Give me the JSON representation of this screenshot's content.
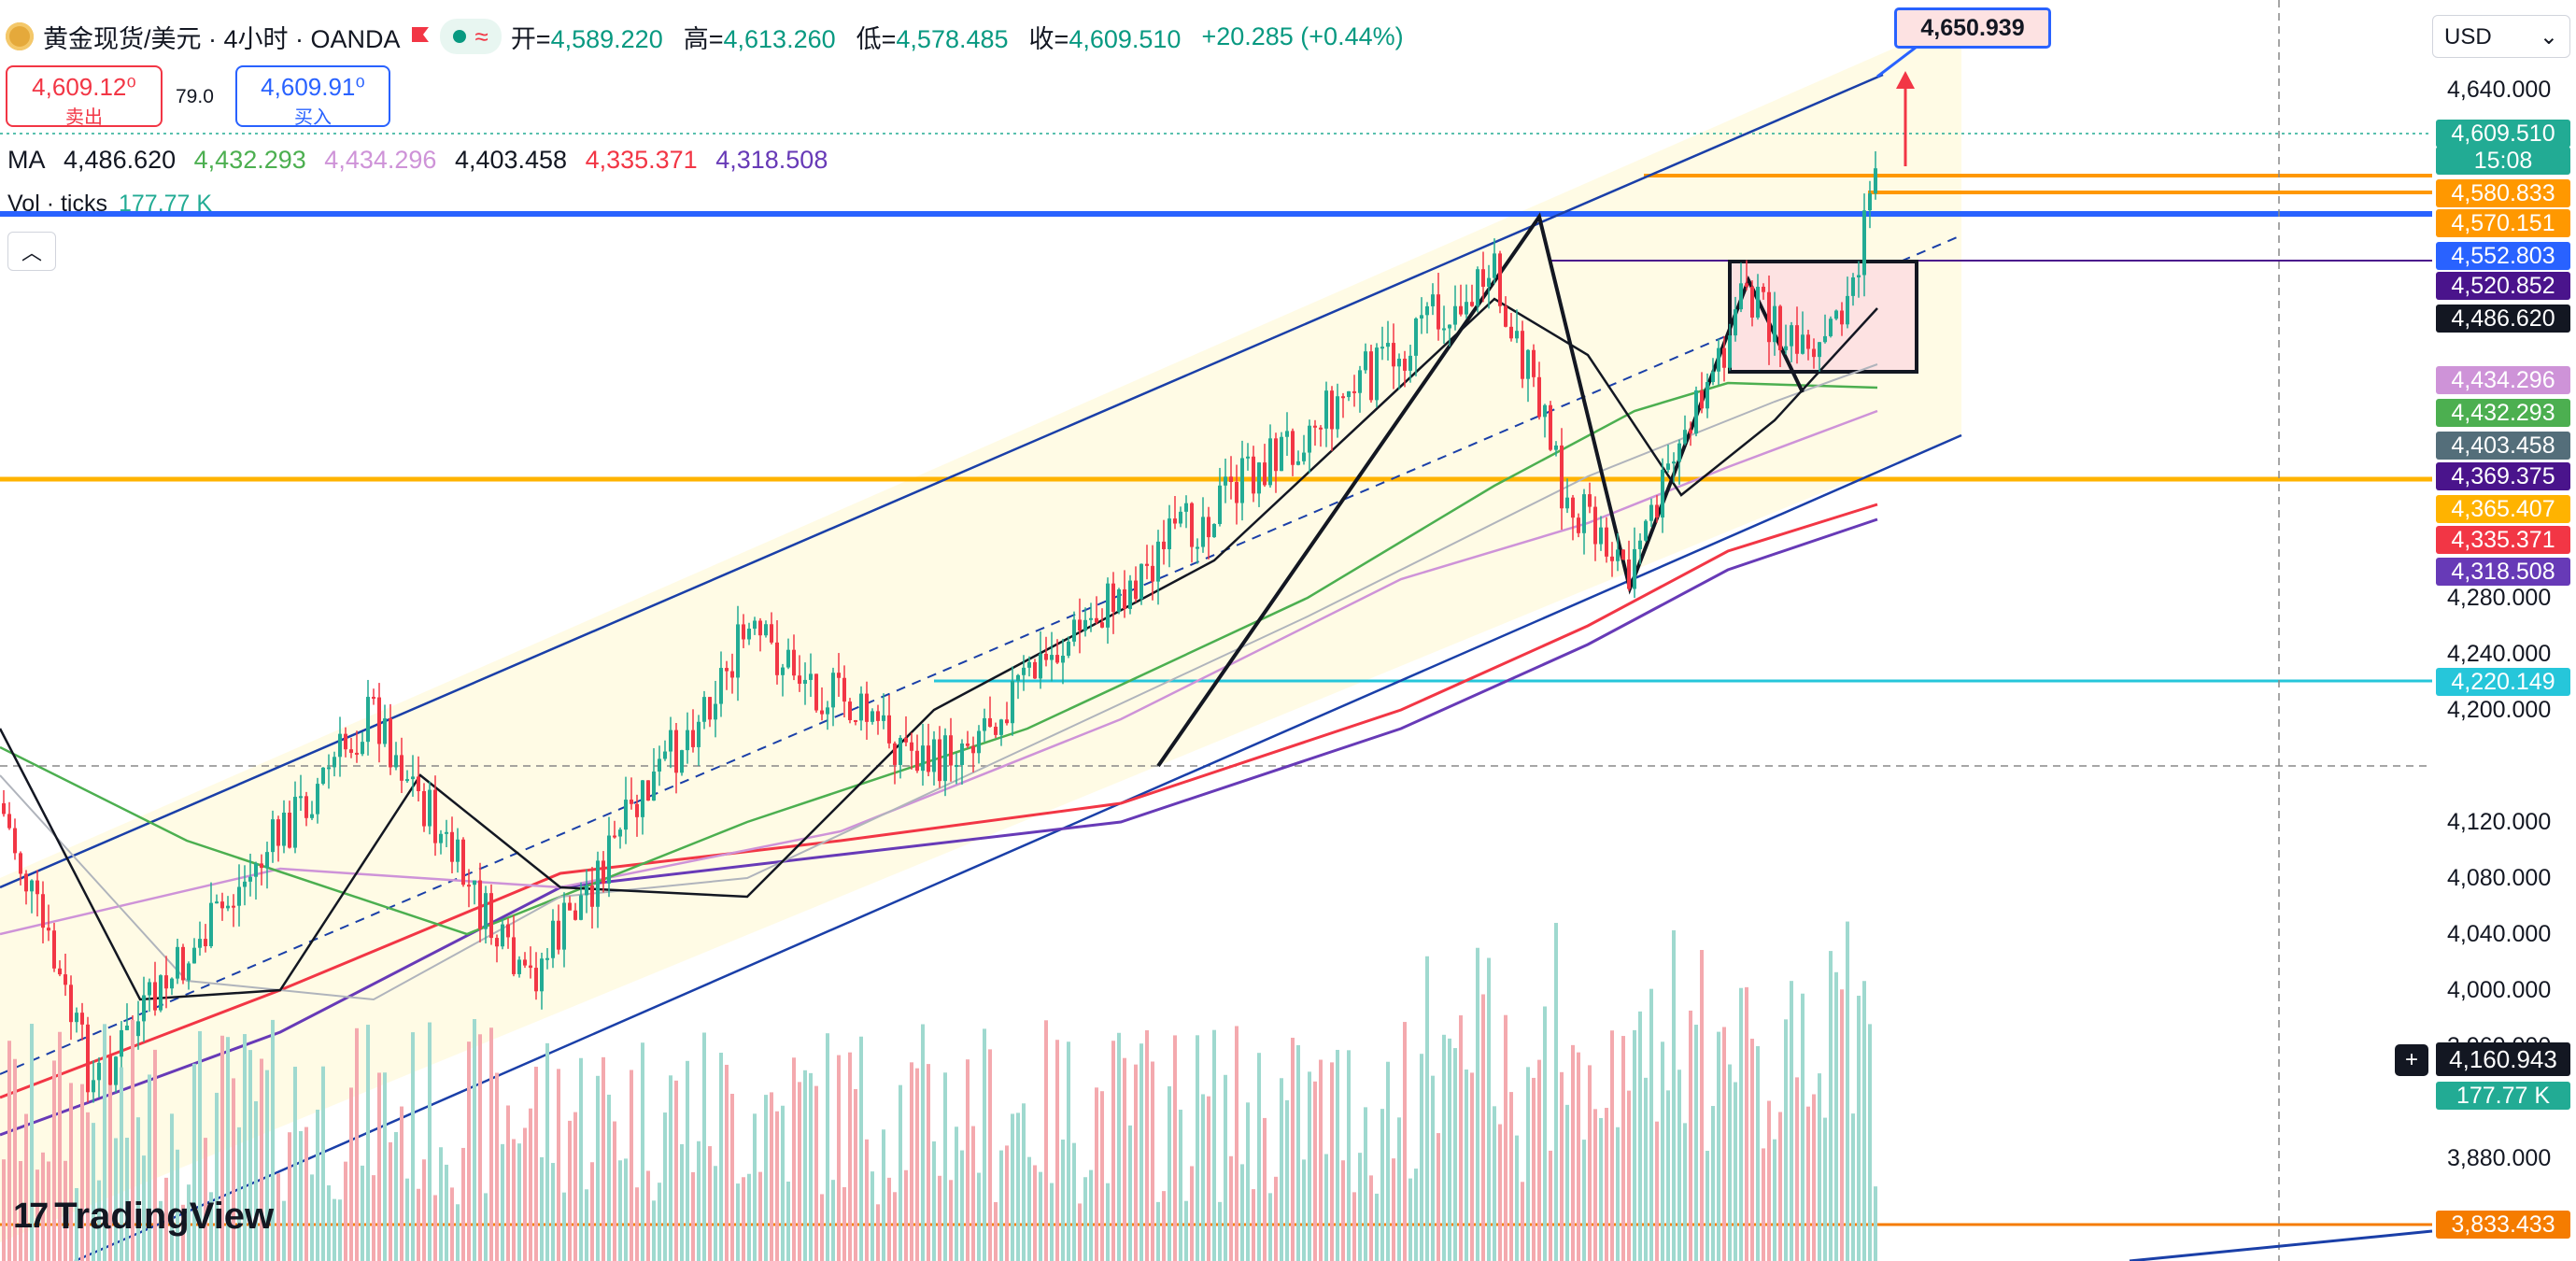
{
  "header": {
    "symbol": "黄金现货/美元 · 4小时 · OANDA",
    "ohlc": [
      {
        "label": "开=",
        "value": "4,589.220"
      },
      {
        "label": "高=",
        "value": "4,613.260"
      },
      {
        "label": "低=",
        "value": "4,578.485"
      },
      {
        "label": "收=",
        "value": "4,609.510"
      }
    ],
    "change": "+20.285 (+0.44%)"
  },
  "trade": {
    "sell_price": "4,609.12⁰",
    "sell_label": "卖出",
    "spread": "79.0",
    "buy_price": "4,609.91⁰",
    "buy_label": "买入"
  },
  "ma": {
    "label": "MA",
    "values": [
      {
        "value": "4,486.620",
        "color": "#131722"
      },
      {
        "value": "4,432.293",
        "color": "#4caf50"
      },
      {
        "value": "4,434.296",
        "color": "#ce93d8"
      },
      {
        "value": "4,403.458",
        "color": "#131722"
      },
      {
        "value": "4,335.371",
        "color": "#f23645"
      },
      {
        "value": "4,318.508",
        "color": "#673ab7"
      }
    ]
  },
  "volume": {
    "label": "Vol · ticks",
    "value": "177.77 K"
  },
  "currency": "USD",
  "price_axis": [
    "4,640.000",
    "4,280.000",
    "4,240.000",
    "4,200.000",
    "4,120.000",
    "4,080.000",
    "4,040.000",
    "4,000.000",
    "3,960.000",
    "3,880.000"
  ],
  "price_tags": [
    {
      "text": "4,609.510",
      "color": "#22ab94"
    },
    {
      "text": "15:08",
      "color": "#22ab94"
    },
    {
      "text": "4,580.833",
      "color": "#ff9800"
    },
    {
      "text": "4,570.151",
      "color": "#ff9800"
    },
    {
      "text": "4,552.803",
      "color": "#2962ff"
    },
    {
      "text": "4,520.852",
      "color": "#4a148c"
    },
    {
      "text": "4,486.620",
      "color": "#131722"
    },
    {
      "text": "4,434.296",
      "color": "#ce93d8"
    },
    {
      "text": "4,432.293",
      "color": "#4caf50"
    },
    {
      "text": "4,403.458",
      "color": "#546e7a"
    },
    {
      "text": "4,369.375",
      "color": "#4a148c"
    },
    {
      "text": "4,365.407",
      "color": "#ffb300"
    },
    {
      "text": "4,335.371",
      "color": "#f23645"
    },
    {
      "text": "4,318.508",
      "color": "#673ab7"
    },
    {
      "text": "4,220.149",
      "color": "#26c6da"
    },
    {
      "text": "177.77 K",
      "color": "#22ab94"
    },
    {
      "text": "3,833.433",
      "color": "#f57c00"
    }
  ],
  "crosshair_price": "4,160.943",
  "target_label": "4,650.939",
  "logo": "TradingView",
  "colors": {
    "up": "#22ab94",
    "down": "#f23645",
    "channel": "#1a3fa8",
    "channel_fill": "#fffbe5"
  }
}
